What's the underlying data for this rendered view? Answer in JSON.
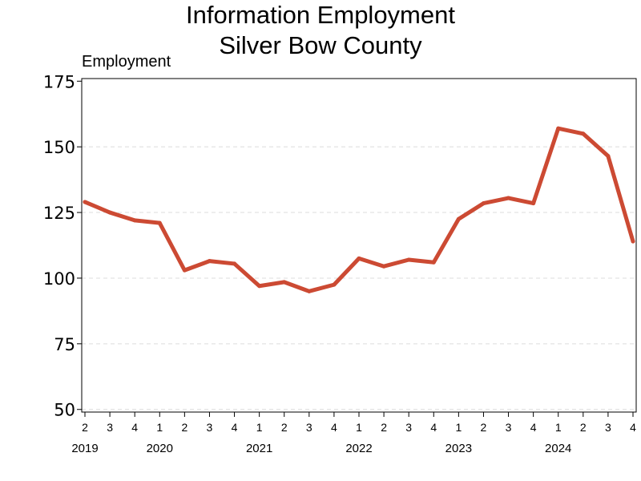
{
  "chart_data": {
    "type": "line",
    "title": [
      "Information Employment",
      "Silver Bow County"
    ],
    "ylabel": "Employment",
    "xlabel": "",
    "ylim": [
      49,
      176
    ],
    "yticks": [
      50,
      75,
      100,
      125,
      150,
      175
    ],
    "grid": "horizontal dashed",
    "line_color": "#cc4a33",
    "x_quarters": [
      "2",
      "3",
      "4",
      "1",
      "2",
      "3",
      "4",
      "1",
      "2",
      "3",
      "4",
      "1",
      "2",
      "3",
      "4",
      "1",
      "2",
      "3",
      "4",
      "1",
      "2",
      "3",
      "4"
    ],
    "years": [
      {
        "label": "2019",
        "index": 0
      },
      {
        "label": "2020",
        "index": 3
      },
      {
        "label": "2021",
        "index": 7
      },
      {
        "label": "2022",
        "index": 11
      },
      {
        "label": "2023",
        "index": 15
      },
      {
        "label": "2024",
        "index": 19
      }
    ],
    "series": [
      {
        "values": [
          129,
          125,
          122,
          121,
          103,
          106.5,
          105.5,
          97,
          98.5,
          95,
          97.5,
          107.5,
          104.5,
          107,
          106,
          122.5,
          128.5,
          130.5,
          128.5,
          157,
          155,
          146.5,
          114
        ]
      }
    ]
  }
}
